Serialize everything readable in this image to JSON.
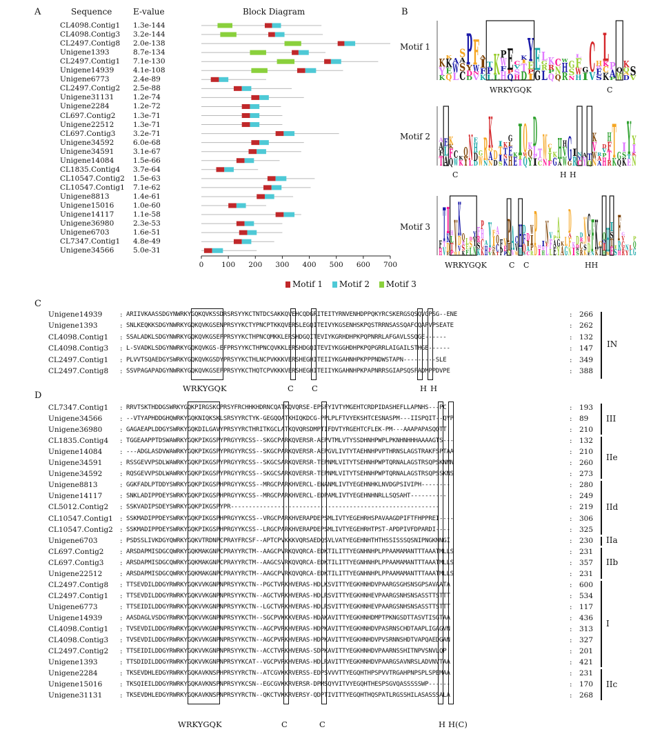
{
  "panelA": {
    "letter": "A",
    "col_sequence": "Sequence",
    "col_evalue": "E-value",
    "col_block": "Block Diagram",
    "rows": [
      {
        "name": "CL4098.Contig1",
        "evalue": "1.3e-144",
        "len": 445,
        "blocks": [
          [
            "g",
            60,
            115
          ],
          [
            "r",
            235,
            262
          ],
          [
            "c",
            262,
            295
          ]
        ]
      },
      {
        "name": "CL4098.Contig3",
        "evalue": "3.2e-144",
        "len": 450,
        "blocks": [
          [
            "g",
            70,
            130
          ],
          [
            "r",
            248,
            273
          ],
          [
            "c",
            273,
            308
          ]
        ]
      },
      {
        "name": "CL2497.Contig8",
        "evalue": "2.0e-138",
        "len": 700,
        "blocks": [
          [
            "g",
            308,
            370
          ],
          [
            "r",
            505,
            530
          ],
          [
            "c",
            530,
            570
          ]
        ]
      },
      {
        "name": "Unigene1393",
        "evalue": "8.7e-134",
        "len": 460,
        "blocks": [
          [
            "g",
            180,
            240
          ],
          [
            "r",
            335,
            360
          ],
          [
            "c",
            360,
            398
          ]
        ]
      },
      {
        "name": "CL2497.Contig1",
        "evalue": "7.1e-130",
        "len": 655,
        "blocks": [
          [
            "g",
            280,
            345
          ],
          [
            "r",
            455,
            480
          ],
          [
            "c",
            480,
            518
          ]
        ]
      },
      {
        "name": "Unigene14939",
        "evalue": "4.1e-108",
        "len": 525,
        "blocks": [
          [
            "g",
            185,
            245
          ],
          [
            "r",
            355,
            385
          ],
          [
            "c",
            385,
            425
          ]
        ]
      },
      {
        "name": "Unigene6773",
        "evalue": "2.4e-89",
        "len": 240,
        "blocks": [
          [
            "r",
            35,
            65
          ],
          [
            "c",
            65,
            100
          ]
        ]
      },
      {
        "name": "CL2497.Contig2",
        "evalue": "2.5e-88",
        "len": 335,
        "blocks": [
          [
            "r",
            120,
            150
          ],
          [
            "c",
            150,
            185
          ]
        ]
      },
      {
        "name": "Unigene31131",
        "evalue": "1.2e-74",
        "len": 380,
        "blocks": [
          [
            "r",
            185,
            215
          ],
          [
            "c",
            215,
            250
          ]
        ]
      },
      {
        "name": "Unigene2284",
        "evalue": "1.2e-72",
        "len": 295,
        "blocks": [
          [
            "r",
            150,
            180
          ],
          [
            "c",
            180,
            215
          ]
        ]
      },
      {
        "name": "CL697.Contig2",
        "evalue": "1.3e-71",
        "len": 300,
        "blocks": [
          [
            "r",
            150,
            180
          ],
          [
            "c",
            180,
            215
          ]
        ]
      },
      {
        "name": "Unigene22512",
        "evalue": "1.3e-71",
        "len": 300,
        "blocks": [
          [
            "r",
            150,
            180
          ],
          [
            "c",
            180,
            215
          ]
        ]
      },
      {
        "name": "CL697.Contig3",
        "evalue": "3.2e-71",
        "len": 510,
        "blocks": [
          [
            "r",
            275,
            305
          ],
          [
            "c",
            305,
            345
          ]
        ]
      },
      {
        "name": "Unigene34592",
        "evalue": "6.0e-68",
        "len": 380,
        "blocks": [
          [
            "r",
            185,
            215
          ],
          [
            "c",
            215,
            250
          ]
        ]
      },
      {
        "name": "Unigene34591",
        "evalue": "3.1e-67",
        "len": 370,
        "blocks": [
          [
            "r",
            175,
            205
          ],
          [
            "c",
            205,
            240
          ]
        ]
      },
      {
        "name": "Unigene14084",
        "evalue": "1.5e-66",
        "len": 290,
        "blocks": [
          [
            "r",
            130,
            160
          ],
          [
            "c",
            160,
            195
          ]
        ]
      },
      {
        "name": "CL1835.Contig4",
        "evalue": "3.7e-64",
        "len": 210,
        "blocks": [
          [
            "r",
            55,
            85
          ],
          [
            "c",
            85,
            120
          ]
        ]
      },
      {
        "name": "CL10547.Contig2",
        "evalue": "1.5e-63",
        "len": 420,
        "blocks": [
          [
            "r",
            245,
            275
          ],
          [
            "c",
            275,
            315
          ]
        ]
      },
      {
        "name": "CL10547.Contig1",
        "evalue": "7.1e-62",
        "len": 405,
        "blocks": [
          [
            "r",
            230,
            260
          ],
          [
            "c",
            260,
            297
          ]
        ]
      },
      {
        "name": "Unigene8813",
        "evalue": "1.4e-61",
        "len": 340,
        "blocks": [
          [
            "r",
            205,
            235
          ],
          [
            "c",
            235,
            270
          ]
        ]
      },
      {
        "name": "Unigene15016",
        "evalue": "1.0e-60",
        "len": 240,
        "blocks": [
          [
            "r",
            100,
            130
          ],
          [
            "c",
            130,
            165
          ]
        ]
      },
      {
        "name": "Unigene14117",
        "evalue": "1.1e-58",
        "len": 370,
        "blocks": [
          [
            "r",
            275,
            305
          ],
          [
            "c",
            305,
            345
          ]
        ]
      },
      {
        "name": "Unigene36980",
        "evalue": "2.3e-53",
        "len": 300,
        "blocks": [
          [
            "r",
            130,
            160
          ],
          [
            "c",
            160,
            195
          ]
        ]
      },
      {
        "name": "Unigene6703",
        "evalue": "1.6e-51",
        "len": 300,
        "blocks": [
          [
            "r",
            140,
            170
          ],
          [
            "c",
            170,
            205
          ]
        ]
      },
      {
        "name": "CL7347.Contig1",
        "evalue": "4.8e-49",
        "len": 270,
        "blocks": [
          [
            "r",
            120,
            150
          ],
          [
            "c",
            150,
            185
          ]
        ]
      },
      {
        "name": "Unigene34566",
        "evalue": "5.0e-31",
        "len": 205,
        "blocks": [
          [
            "r",
            10,
            40
          ],
          [
            "c",
            40,
            80
          ]
        ]
      }
    ],
    "axis_ticks": [
      "0",
      "100",
      "200",
      "300",
      "400",
      "500",
      "600",
      "700"
    ],
    "legend": [
      {
        "label": "Motif 1",
        "color": "#c0282a"
      },
      {
        "label": "Motif 2",
        "color": "#4ec9d6"
      },
      {
        "label": "Motif 3",
        "color": "#8ad03c"
      }
    ]
  },
  "panelB": {
    "letter": "B",
    "motifs": [
      {
        "label": "Motif 1",
        "annotations": [
          {
            "text": "WRKYGQK"
          },
          {
            "text": "C"
          }
        ]
      },
      {
        "label": "Motif 2",
        "annotations": [
          {
            "text": "C"
          },
          {
            "text": "H"
          },
          {
            "text": "H"
          }
        ]
      },
      {
        "label": "Motif 3",
        "annotations": [
          {
            "text": "WRKYGQK"
          },
          {
            "text": "C"
          },
          {
            "text": "C"
          },
          {
            "text": "HH"
          }
        ]
      }
    ]
  },
  "panelC": {
    "letter": "C",
    "rows": [
      {
        "name": "Unigene14939",
        "seq": "ARIIVKAASSDGYNWRKYGQKQVKSSDRSRSYYKCTNTDCSAKKQVEHCQDGRITEITYRNVENHDPPQKYRCSKERGSQSQVGPSG--ENE",
        "num": "266"
      },
      {
        "name": "Unigene1393",
        "seq": "SNLKEQKKSDGYNWRKYGQKQVKGSENPRSYYKCTYPNCPTKKQVERSLEGQITEIVYKGSENHSKPQSTRRNSASSQAFCQAPVPSEATE",
        "num": "262"
      },
      {
        "name": "CL4098.Contig1",
        "seq": "SSALADKLSDGYNWRKYGQKQVKGSEFPRSYYKCTHPNCQMKKLERSHDGQITEVIYKGRHDHPKPQPNRRLAFGAVLSSQGE------",
        "num": "132"
      },
      {
        "name": "CL4098.Contig3",
        "seq": "L-SVADKLSDGYNWRKYGQKQVKGS-EFPRSYYKCTHPNCQVKKLERSHDGQITEVIYKGGHDHPKPQPGRRLAIGAILSTHGE------",
        "num": "147"
      },
      {
        "name": "CL2497.Contig1",
        "seq": "PLVVTSQAEDGYSWRKYGQKQVKGSDYPRSYYKCTHLNCPVKKKVERSHEGHITEIIYKGAHNHPKPPPNDWSTAPN---------SLE",
        "num": "349"
      },
      {
        "name": "CL2497.Contig8",
        "seq": "SSVPAGAPADGYNWRKYGQKQVKGSEFPRSYYKCTHQTCPVKKKVERSHEGHITEIIYKGAHNHPKPAPNRRSGIAPSQSFADMPPDVPE",
        "num": "388"
      }
    ],
    "group": "IN",
    "annot": [
      {
        "text": "WRKYGQK"
      },
      {
        "text": "C"
      },
      {
        "text": "C"
      },
      {
        "text": "H"
      },
      {
        "text": "H"
      }
    ]
  },
  "panelD": {
    "letter": "D",
    "rows": [
      {
        "name": "CL7347.Contig1",
        "seq": "RRVTSKTHDDGSWRKYGQKPIRGSKCPRSYFRCHHKHDRNCQATKQVQRSE-EPSFYIVTYMGEHTCRDPIDASHEFLLAPNHS---PC",
        "num": "193"
      },
      {
        "name": "Unigene34566",
        "seq": "--VTYAPHDDGHQWRKYGQKNIQKSKLSRSYYRCTYK-GEGQQATKHIQKDCG-PPLPLFTVYEKSHTCESNASPM---IISPQIT--QYP",
        "num": "89"
      },
      {
        "name": "Unigene36980",
        "seq": "GAGAEAPLDDGYSWRKYGQKDILGAVYPRSYYRCTHRITKGCLATKQVQRSDMPTIFDVTYRGEHTCFLEK-PM---AAAPAPASQQTT",
        "num": "210"
      },
      {
        "name": "CL1835.Contig4",
        "seq": "TGGEAAPPTDSWAWRKYGQKPIKGSPYPRGYYRCSS--SKGCPARKQVERSR-AEPVTMLVTYSSDHNHPWPLPKNHNHHHAAAAGTS---",
        "num": "132"
      },
      {
        "name": "Unigene14084",
        "seq": "---ADGLASDVWAWRKYGQKPIKGSPYPRGYYRCSS--SKGCPARKQVERSR-AEPGVLIVTYTAEHNHPVPTHRNSLAGSTRAKFSPTAA",
        "num": "210"
      },
      {
        "name": "Unigene34591",
        "seq": "RSSGEVVPSDLWAWRKYGQKPIKGSPYPRGYYRCSS--SKGCSARKQVERSR-TEPNMLVITYTSEHNHPWPTQRNALAGSTRSQPSKNMN",
        "num": "260"
      },
      {
        "name": "Unigene34592",
        "seq": "RQSGEVVPSDLWAWRKYGQKPIKGSPYPRGYYRCSS--SKGCSARKQVERSR-TEPNMLVITYTSEHNHPWPTQRNALAGSTRSQPSSKNS",
        "num": "273"
      },
      {
        "name": "Unigene8813",
        "seq": "GGKFADLPTDDYSWRKYGQKPIKGSPHPRGYYKCSS--MRGCPARKHVERCL-ENANMLIVTYEGEHNHKLNVDGPSIVIPH--------",
        "num": "280"
      },
      {
        "name": "Unigene14117",
        "seq": "SNKLADIPPDEYSWRKYGQKPIKGSPHPRGYYKCSS--MRGCPARKHVERCL-EDPAMLIVTYEGEHNHNRLLSQSAHT----------",
        "num": "249"
      },
      {
        "name": "CL5012.Contig2",
        "seq": "SSKVADIPSDEYSWRKYGQKPIKGSPYPR----------------------------------------------------------",
        "num": "219"
      },
      {
        "name": "CL10547.Contig1",
        "seq": "SSKMADIPPDEYSWRKYGQKPIKGSPHPRGYYKCSS--VRGCPARKHVERAPDEPSMLIVTYEGEHRHSPAVAAGDPIFTFHPPREI----",
        "num": "306"
      },
      {
        "name": "CL10547.Contig2",
        "seq": "SSKMADIPPDEYSWRKYGQKPIKGSPHPRGYYKCSS--LRGCPARKHVERAPDEPSMLIVTYEGEHRHTPST-APDPIVFDPARDI----",
        "num": "325"
      },
      {
        "name": "Unigene6703",
        "seq": "PSDSSLIVKDGYQWRKYGQKVTRDNPCPRAYFRCSF--APTCPVKKKVQRSAEDQSVLVATYEGEHNHTHTHSSISSSQSNIPNGKNNGI",
        "num": "230"
      },
      {
        "name": "CL697.Contig2",
        "seq": "ARSDAPMISDGCQWRKYGQKMAKGNPCPRAYYRCTM--AAGCPVRKQVQRCA-EDKTILITTYEGNHNHPLPPAAMAMANTTTAAATMLLS",
        "num": "231"
      },
      {
        "name": "CL697.Contig3",
        "seq": "ARSDAPMISDGCQWRKYGQKMAKGNPCPRAYYRCTM--AAGCSVRKQVQRCA-EDKTILITTYEGNHNHPLPPAAMAMANTTTAAATMLLS",
        "num": "357"
      },
      {
        "name": "Unigene22512",
        "seq": "ARSDAPMISDGCQWRKYGQKMAKGNPCPRAYYRCTM--AAGCPVRKQVQRCA-EDKTILITTYEGNHNHPLPPAAMAMANTTTAAATMLLS",
        "num": "231"
      },
      {
        "name": "CL2497.Contig8",
        "seq": "TTSEVDILDDGYRWRKYGQKVVKGNPNPRSYYKCTN--PGCTVRKHVERAS-HDLKSVITTYEGKHNHDVPAARGSGHSNSGPSAVAATA",
        "num": "600"
      },
      {
        "name": "CL2497.Contig1",
        "seq": "TTSEVDILDDGYRWRKYGQKVVKGNPNPRSYYKCTN--AGCTVRKHVERAS-HDLRSVITTYEGKHNHEVPAARGSNHSNSASSTTSTTT",
        "num": "534"
      },
      {
        "name": "Unigene6773",
        "seq": "TTSEIDILDDGYRWRKYGQKVVKGNPNPRSYYKCTN--LGCTVRKHVERAS-HDLRSVITTYEGKHNHEVPAARGSNHSNSASSTTSTTT",
        "num": "117"
      },
      {
        "name": "Unigene14939",
        "seq": "AASDAGLVSDGYRWRKYGQKVVKGNPNPRSYYKCTH--SGCPVKKKVERAS-HDAKAVITTYEGKHNHDMPTPKNGSDTTASVTISGTAA",
        "num": "436"
      },
      {
        "name": "CL4098.Contig1",
        "seq": "TVSEVDILDDGYRWRKYGQKVVKGNPNPRSYYKCTN--AGCPVRKHVERAS-HDPKAVITTYEGKHNHDVPASRNSCHDTAAPLIGAGVN",
        "num": "313"
      },
      {
        "name": "CL4098.Contig3",
        "seq": "TVSEVDILDDGYRWRKYGQKVVKGNPNPRSYYKCTN--AGCPVRKHVERAS-HDPKAVITTYEGKHNHDVPVSRNNSHDTVAPQAEDGAN",
        "num": "327"
      },
      {
        "name": "CL2497.Contig2",
        "seq": "TTSEIDILDDGYRWRKYGQKVVKGNPNPRSYYKCTN--ACCTVRKHVERAS-SDPKAVITTYEGKHNHDVPAARNSSHITNPVSNVLQP",
        "num": "201"
      },
      {
        "name": "Unigene1393",
        "seq": "TTSDIDILDDGYRWRKYGQKVVKGNPNPRSYYKCAT--VGCPVRKHVERAS-HDLRAVITTYEGKHNHDVPAARGSAVNRSLADVNVTAA",
        "num": "421"
      },
      {
        "name": "Unigene2284",
        "seq": "TKSEVDHLEDGYRWRKYGQKAVKNSPHPRSYYRCTN--ATCGVKKRVERSS-EDPSVVVTTYEGQHTHPSPVVTRGAHPNPSPLSPEMAA",
        "num": "231"
      },
      {
        "name": "Unigene15016",
        "seq": "TKSQIEILDDGYRWRKYGQKAVKNSPNPRSYYKCSN--EGCGVKKRVERSR-DPMSQYVITVYEGQHTHESPSGVQASSSSSWP------",
        "num": "170"
      },
      {
        "name": "Unigene31131",
        "seq": "TKSEVDHLEDGYRWRKYGQKAVKNSPNPRSYYRCTN--QKCTVKKRVERSY-QDPTIVITTYEGQHTHQSPATLRGSSHILASASSSALA",
        "num": "268"
      }
    ],
    "groups": [
      "III",
      "IIe",
      "IId",
      "IIa",
      "IIb",
      "I",
      "IIc"
    ],
    "annot": [
      {
        "text": "WRKYGQK"
      },
      {
        "text": "C"
      },
      {
        "text": "C"
      },
      {
        "text": "H"
      },
      {
        "text": "H(C)"
      }
    ]
  }
}
